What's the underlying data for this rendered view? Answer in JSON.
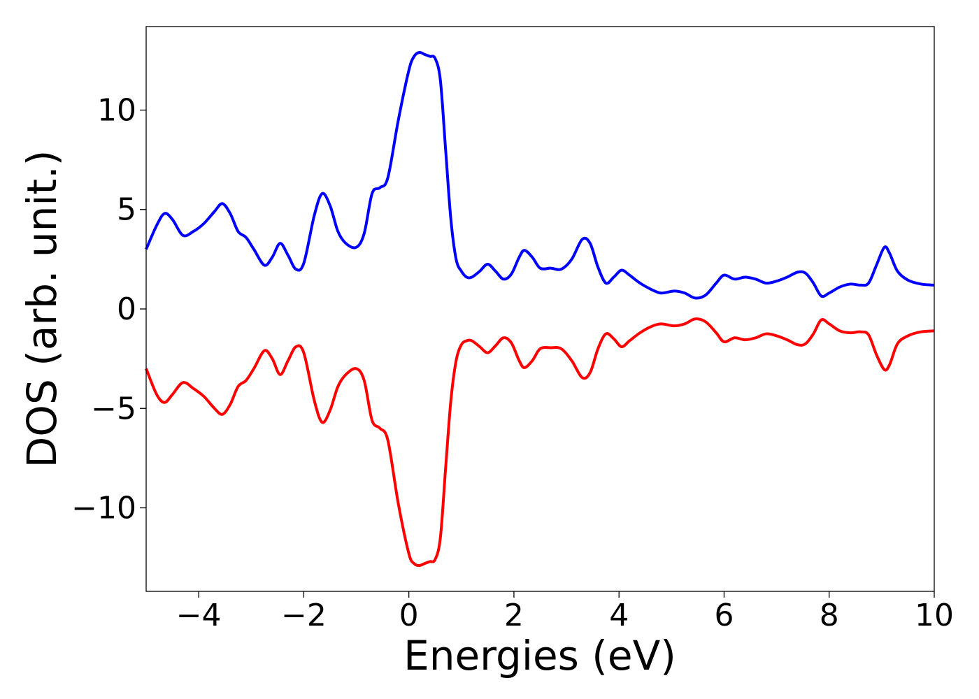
{
  "chart_data": {
    "type": "line",
    "title": "",
    "xlabel": "Energies (eV)",
    "ylabel": "DOS (arb. unit.)",
    "xlim": [
      -5,
      10
    ],
    "ylim": [
      -14.2,
      14.2
    ],
    "xticks": [
      -4,
      -2,
      0,
      2,
      4,
      6,
      8,
      10
    ],
    "xtick_labels": [
      "−4",
      "−2",
      "0",
      "2",
      "4",
      "6",
      "8",
      "10"
    ],
    "yticks": [
      -10,
      -5,
      0,
      5,
      10
    ],
    "ytick_labels": [
      "−10",
      "−5",
      "0",
      "5",
      "10"
    ],
    "grid": false,
    "legend": "none",
    "series": [
      {
        "color": "#0000ff",
        "x": [
          -5.0,
          -4.8,
          -4.65,
          -4.5,
          -4.3,
          -4.1,
          -3.9,
          -3.7,
          -3.55,
          -3.4,
          -3.25,
          -3.1,
          -2.95,
          -2.75,
          -2.6,
          -2.45,
          -2.3,
          -2.15,
          -2.0,
          -1.8,
          -1.65,
          -1.5,
          -1.35,
          -1.2,
          -1.0,
          -0.85,
          -0.7,
          -0.55,
          -0.4,
          -0.2,
          0.0,
          0.1,
          0.2,
          0.3,
          0.4,
          0.5,
          0.6,
          0.7,
          0.8,
          0.9,
          1.0,
          1.1,
          1.2,
          1.35,
          1.5,
          1.65,
          1.8,
          1.95,
          2.1,
          2.2,
          2.35,
          2.5,
          2.7,
          2.9,
          3.1,
          3.3,
          3.45,
          3.6,
          3.75,
          3.9,
          4.05,
          4.2,
          4.4,
          4.6,
          4.8,
          5.05,
          5.25,
          5.45,
          5.65,
          5.85,
          6.0,
          6.2,
          6.4,
          6.6,
          6.8,
          7.0,
          7.2,
          7.4,
          7.55,
          7.7,
          7.85,
          8.0,
          8.2,
          8.4,
          8.6,
          8.75,
          8.9,
          9.05,
          9.15,
          9.3,
          9.5,
          9.75,
          10.0
        ],
        "y": [
          3.0,
          4.2,
          4.8,
          4.5,
          3.7,
          3.9,
          4.3,
          4.9,
          5.3,
          4.8,
          3.9,
          3.6,
          3.0,
          2.2,
          2.6,
          3.3,
          2.7,
          2.0,
          2.3,
          4.7,
          5.8,
          5.2,
          3.9,
          3.3,
          3.1,
          3.8,
          5.8,
          6.1,
          6.6,
          9.5,
          12.0,
          12.7,
          12.9,
          12.8,
          12.7,
          12.6,
          11.5,
          8.0,
          4.5,
          2.5,
          1.9,
          1.6,
          1.6,
          1.9,
          2.25,
          1.9,
          1.5,
          1.75,
          2.6,
          2.95,
          2.6,
          2.05,
          2.05,
          2.0,
          2.5,
          3.5,
          3.3,
          2.1,
          1.3,
          1.6,
          1.95,
          1.7,
          1.3,
          1.0,
          0.8,
          0.9,
          0.8,
          0.55,
          0.7,
          1.3,
          1.7,
          1.5,
          1.6,
          1.5,
          1.3,
          1.4,
          1.6,
          1.85,
          1.8,
          1.3,
          0.65,
          0.8,
          1.1,
          1.25,
          1.2,
          1.3,
          2.2,
          3.1,
          2.8,
          1.9,
          1.45,
          1.25,
          1.2
        ]
      },
      {
        "color": "#ff0000",
        "x": [
          -5.0,
          -4.8,
          -4.65,
          -4.5,
          -4.3,
          -4.1,
          -3.9,
          -3.7,
          -3.55,
          -3.4,
          -3.25,
          -3.1,
          -2.95,
          -2.75,
          -2.6,
          -2.45,
          -2.3,
          -2.15,
          -2.0,
          -1.8,
          -1.65,
          -1.5,
          -1.35,
          -1.2,
          -1.0,
          -0.85,
          -0.7,
          -0.55,
          -0.4,
          -0.2,
          0.0,
          0.1,
          0.2,
          0.3,
          0.4,
          0.5,
          0.6,
          0.7,
          0.8,
          0.9,
          1.0,
          1.1,
          1.2,
          1.35,
          1.5,
          1.65,
          1.8,
          1.95,
          2.1,
          2.2,
          2.35,
          2.5,
          2.7,
          2.9,
          3.1,
          3.3,
          3.45,
          3.6,
          3.75,
          3.9,
          4.05,
          4.2,
          4.4,
          4.6,
          4.8,
          5.05,
          5.25,
          5.45,
          5.65,
          5.85,
          6.0,
          6.2,
          6.4,
          6.6,
          6.8,
          7.0,
          7.2,
          7.4,
          7.55,
          7.7,
          7.85,
          8.0,
          8.2,
          8.4,
          8.6,
          8.75,
          8.9,
          9.05,
          9.15,
          9.3,
          9.5,
          9.75,
          10.0
        ],
        "y": [
          -3.0,
          -4.3,
          -4.7,
          -4.3,
          -3.7,
          -4.0,
          -4.4,
          -5.0,
          -5.3,
          -4.8,
          -3.9,
          -3.6,
          -3.0,
          -2.1,
          -2.5,
          -3.3,
          -2.6,
          -1.9,
          -2.2,
          -4.6,
          -5.7,
          -5.1,
          -3.9,
          -3.3,
          -3.0,
          -3.6,
          -5.6,
          -6.0,
          -6.6,
          -9.8,
          -12.3,
          -12.8,
          -12.9,
          -12.8,
          -12.7,
          -12.6,
          -11.5,
          -8.0,
          -4.6,
          -2.6,
          -1.8,
          -1.6,
          -1.6,
          -1.9,
          -2.2,
          -1.85,
          -1.45,
          -1.7,
          -2.6,
          -2.95,
          -2.6,
          -2.0,
          -1.95,
          -2.0,
          -2.6,
          -3.45,
          -3.2,
          -2.0,
          -1.25,
          -1.5,
          -1.9,
          -1.6,
          -1.2,
          -0.9,
          -0.75,
          -0.85,
          -0.75,
          -0.5,
          -0.65,
          -1.2,
          -1.65,
          -1.45,
          -1.55,
          -1.45,
          -1.25,
          -1.35,
          -1.55,
          -1.8,
          -1.75,
          -1.25,
          -0.55,
          -0.75,
          -1.1,
          -1.2,
          -1.15,
          -1.3,
          -2.3,
          -3.05,
          -2.8,
          -1.75,
          -1.35,
          -1.15,
          -1.1
        ]
      }
    ]
  }
}
